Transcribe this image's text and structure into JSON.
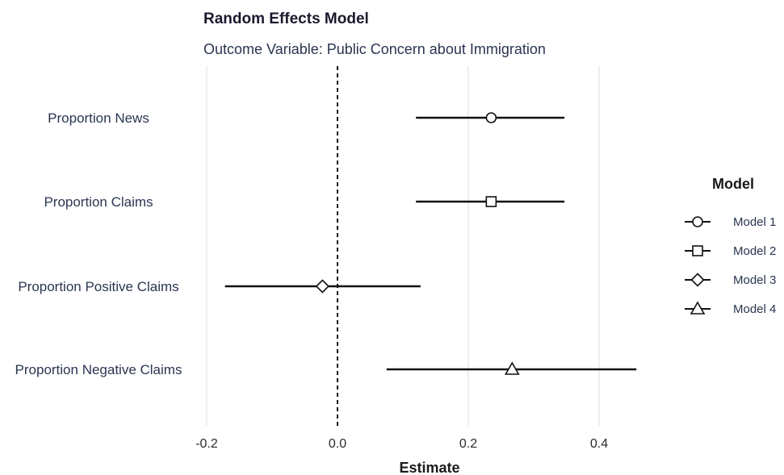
{
  "chart_data": {
    "type": "scatter",
    "title": "Random Effects Model",
    "subtitle": "Outcome Variable: Public Concern about Immigration",
    "xlabel": "Estimate",
    "ylabel": "",
    "xlim": [
      -0.2,
      0.4
    ],
    "x_ticks": [
      "-0.2",
      "0.0",
      "0.2",
      "0.4"
    ],
    "reference_line": 0.0,
    "grid": true,
    "categories": [
      "Proportion News",
      "Proportion Claims",
      "Proportion Positive Claims",
      "Proportion Negative Claims"
    ],
    "series": [
      {
        "name": "Model 1",
        "shape": "circle",
        "category": "Proportion News",
        "estimate": 0.235,
        "lower": 0.12,
        "upper": 0.347
      },
      {
        "name": "Model 2",
        "shape": "square",
        "category": "Proportion Claims",
        "estimate": 0.235,
        "lower": 0.12,
        "upper": 0.347
      },
      {
        "name": "Model 3",
        "shape": "diamond",
        "category": "Proportion Positive Claims",
        "estimate": -0.023,
        "lower": -0.172,
        "upper": 0.127
      },
      {
        "name": "Model 4",
        "shape": "triangle",
        "category": "Proportion Negative Claims",
        "estimate": 0.267,
        "lower": 0.075,
        "upper": 0.457
      }
    ],
    "legend": {
      "title": "Model",
      "position": "right"
    }
  }
}
